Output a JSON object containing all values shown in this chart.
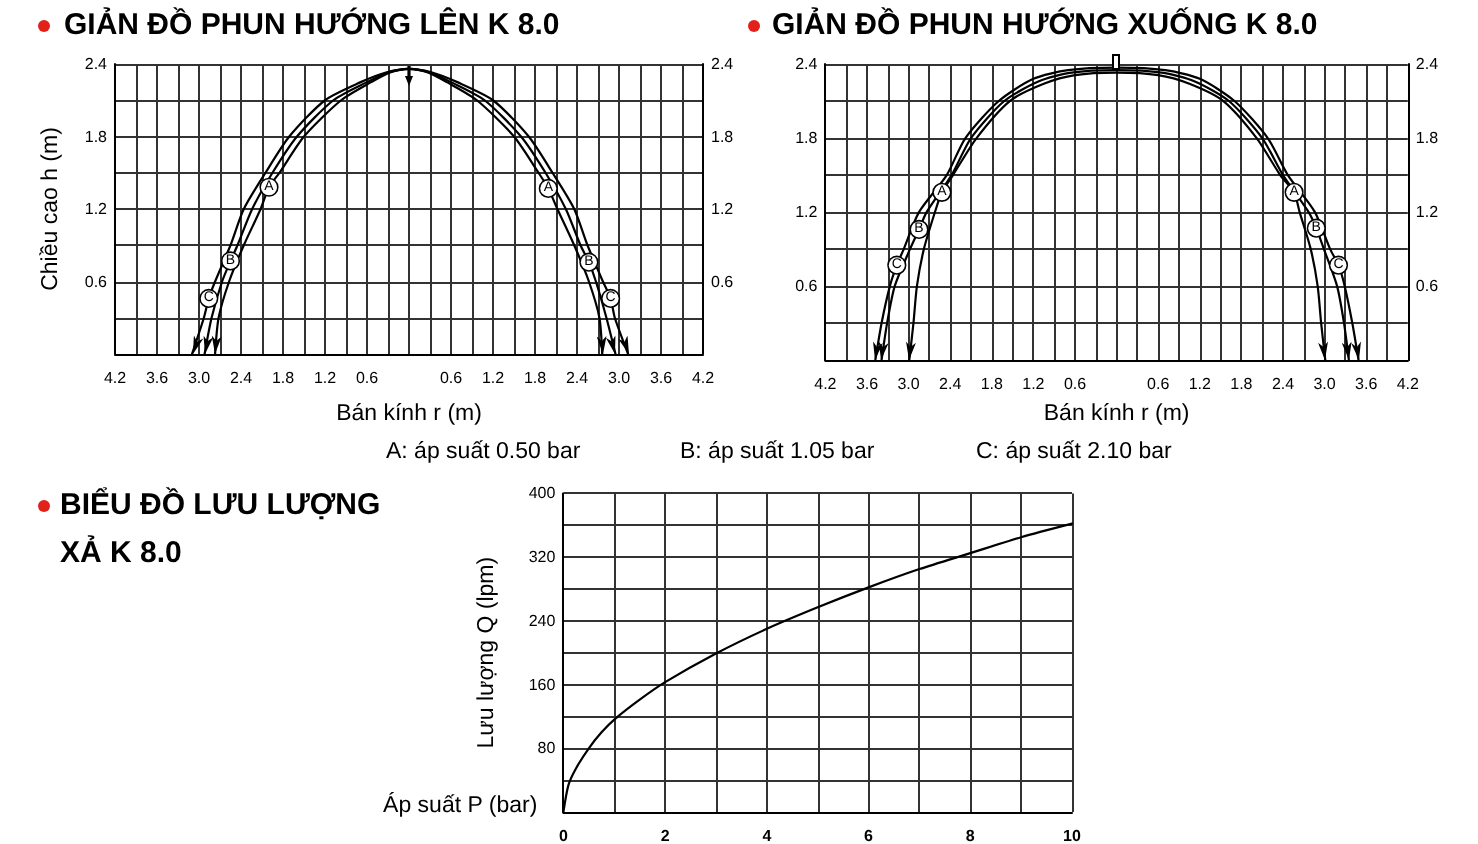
{
  "chart_data": [
    {
      "type": "line",
      "title": "GIẢN ĐỒ PHUN HƯỚNG LÊN K 8.0",
      "xlabel": "Bán kính r (m)",
      "ylabel": "Chiều cao h (m)",
      "series": [
        {
          "name": "A",
          "color": "#000000",
          "x": [
            -2.77,
            -2.72,
            -2.57,
            -2.36,
            -2.12,
            -2,
            -1.85,
            -1.5,
            -0.97,
            -0.54,
            -0.27,
            0,
            0.27,
            0.54,
            0.97,
            1.5,
            1.85,
            1.99,
            2.12,
            2.36,
            2.57,
            2.72,
            2.76
          ],
          "values": [
            0,
            0.3,
            0.6,
            0.9,
            1.2,
            1.38,
            1.5,
            1.8,
            2.1,
            2.25,
            2.33,
            2.36,
            2.33,
            2.25,
            2.1,
            1.8,
            1.5,
            1.37,
            1.2,
            0.9,
            0.6,
            0.3,
            0
          ]
        },
        {
          "name": "B",
          "color": "#000000",
          "x": [
            -2.92,
            -2.82,
            -2.67,
            -2.55,
            -2.45,
            -2.24,
            -1.95,
            -1.6,
            -1.08,
            -0.6,
            -0.3,
            0,
            0.3,
            0.6,
            1.08,
            1.6,
            1.95,
            2.24,
            2.45,
            2.57,
            2.67,
            2.82,
            2.95
          ],
          "values": [
            0,
            0.3,
            0.6,
            0.77,
            0.9,
            1.2,
            1.5,
            1.8,
            2.1,
            2.25,
            2.33,
            2.36,
            2.33,
            2.25,
            2.1,
            1.8,
            1.5,
            1.2,
            0.9,
            0.76,
            0.6,
            0.3,
            0
          ]
        },
        {
          "name": "C",
          "color": "#000000",
          "x": [
            -3.1,
            -2.93,
            -2.86,
            -2.77,
            -2.55,
            -2.36,
            -2.05,
            -1.71,
            -1.2,
            -0.69,
            -0.33,
            0,
            0.33,
            0.69,
            1.2,
            1.71,
            2.05,
            2.36,
            2.55,
            2.77,
            2.88,
            2.94,
            3.13
          ],
          "values": [
            0,
            0.3,
            0.46,
            0.6,
            0.9,
            1.2,
            1.5,
            1.8,
            2.1,
            2.25,
            2.33,
            2.36,
            2.33,
            2.25,
            2.1,
            1.8,
            1.5,
            1.2,
            0.9,
            0.6,
            0.46,
            0.3,
            0
          ]
        }
      ],
      "xlim": [
        -4.2,
        4.2
      ],
      "xticks": [
        {
          "value": -4.2,
          "label": "4.2"
        },
        {
          "value": -3.9,
          "label": null
        },
        {
          "value": -3.6,
          "label": "3.6"
        },
        {
          "value": -3.3,
          "label": null
        },
        {
          "value": -3,
          "label": "3.0"
        },
        {
          "value": -2.7,
          "label": null
        },
        {
          "value": -2.4,
          "label": "2.4"
        },
        {
          "value": -2.1,
          "label": null
        },
        {
          "value": -1.8,
          "label": "1.8"
        },
        {
          "value": -1.5,
          "label": null
        },
        {
          "value": -1.2,
          "label": "1.2"
        },
        {
          "value": -0.9,
          "label": null
        },
        {
          "value": -0.6,
          "label": "0.6"
        },
        {
          "value": -0.3,
          "label": null
        },
        {
          "value": 0,
          "label": null
        },
        {
          "value": 0.3,
          "label": null
        },
        0.6,
        {
          "value": 0.9,
          "label": null
        },
        1.2,
        {
          "value": 1.5,
          "label": null
        },
        1.8,
        {
          "value": 2.1,
          "label": null
        },
        2.4,
        {
          "value": 2.7,
          "label": null
        },
        {
          "value": 3,
          "label": "3.0"
        },
        {
          "value": 3.3,
          "label": null
        },
        3.6,
        {
          "value": 3.9,
          "label": null
        },
        4.2
      ],
      "ylim": [
        0,
        2.4
      ],
      "yticks": [
        {
          "value": 0,
          "label": null
        },
        {
          "value": 0.3,
          "label": null
        },
        0.6,
        {
          "value": 0.9,
          "label": null
        },
        1.2,
        {
          "value": 1.5,
          "label": null
        },
        1.8,
        {
          "value": 2.1,
          "label": null
        },
        2.4
      ],
      "y2lim": [
        0,
        2.4
      ],
      "y2ticks": [
        0.6,
        1.2,
        1.8,
        2.4
      ],
      "grid": true
    },
    {
      "type": "line",
      "title": "GIẢN ĐỒ PHUN HƯỚNG XUỐNG K 8.0",
      "xlabel": "Bán kính r (m)",
      "series": [
        {
          "name": "A",
          "color": "#000000",
          "x": [
            -2.99,
            -2.93,
            -2.88,
            -2.78,
            -2.62,
            -2.52,
            -2.36,
            -2.02,
            -1.54,
            -1.05,
            -0.6,
            0,
            0.6,
            1.05,
            1.54,
            2.02,
            2.36,
            2.56,
            2.64,
            2.8,
            2.9,
            2.95,
            3.01
          ],
          "values": [
            0,
            0.3,
            0.6,
            0.9,
            1.2,
            1.36,
            1.5,
            1.8,
            2.1,
            2.24,
            2.31,
            2.33,
            2.31,
            2.24,
            2.1,
            1.8,
            1.5,
            1.36,
            1.2,
            0.9,
            0.6,
            0.3,
            0
          ]
        },
        {
          "name": "B",
          "color": "#000000",
          "x": [
            -3.39,
            -3.31,
            -3.2,
            -2.98,
            -2.85,
            -2.74,
            -2.38,
            -2.1,
            -1.62,
            -1.12,
            -0.65,
            0,
            0.65,
            1.12,
            1.62,
            2.1,
            2.4,
            2.77,
            2.88,
            2.99,
            3.18,
            3.28,
            3.35
          ],
          "values": [
            0,
            0.3,
            0.6,
            0.9,
            1.06,
            1.2,
            1.5,
            1.8,
            2.1,
            2.26,
            2.33,
            2.35,
            2.33,
            2.26,
            2.1,
            1.8,
            1.5,
            1.2,
            1.07,
            0.9,
            0.6,
            0.3,
            0
          ]
        },
        {
          "name": "C",
          "color": "#000000",
          "x": [
            -3.48,
            -3.39,
            -3.27,
            -3.17,
            -3.07,
            -2.85,
            -2.45,
            -2.18,
            -1.7,
            -1.2,
            -0.7,
            0,
            0.7,
            1.2,
            1.7,
            2.18,
            2.47,
            2.86,
            3.08,
            3.2,
            3.29,
            3.4,
            3.49
          ],
          "values": [
            0,
            0.3,
            0.6,
            0.77,
            0.9,
            1.2,
            1.5,
            1.8,
            2.1,
            2.28,
            2.35,
            2.37,
            2.35,
            2.28,
            2.1,
            1.8,
            1.5,
            1.2,
            0.9,
            0.77,
            0.6,
            0.3,
            0
          ]
        }
      ],
      "xlim": [
        -4.2,
        4.2
      ],
      "xticks": [
        {
          "value": -4.2,
          "label": "4.2"
        },
        {
          "value": -3.9,
          "label": null
        },
        {
          "value": -3.6,
          "label": "3.6"
        },
        {
          "value": -3.3,
          "label": null
        },
        {
          "value": -3,
          "label": "3.0"
        },
        {
          "value": -2.7,
          "label": null
        },
        {
          "value": -2.4,
          "label": "2.4"
        },
        {
          "value": -2.1,
          "label": null
        },
        {
          "value": -1.8,
          "label": "1.8"
        },
        {
          "value": -1.5,
          "label": null
        },
        {
          "value": -1.2,
          "label": "1.2"
        },
        {
          "value": -0.9,
          "label": null
        },
        {
          "value": -0.6,
          "label": "0.6"
        },
        {
          "value": -0.3,
          "label": null
        },
        {
          "value": 0,
          "label": null
        },
        {
          "value": 0.3,
          "label": null
        },
        0.6,
        {
          "value": 0.9,
          "label": null
        },
        1.2,
        {
          "value": 1.5,
          "label": null
        },
        1.8,
        {
          "value": 2.1,
          "label": null
        },
        2.4,
        {
          "value": 2.7,
          "label": null
        },
        {
          "value": 3,
          "label": "3.0"
        },
        {
          "value": 3.3,
          "label": null
        },
        3.6,
        {
          "value": 3.9,
          "label": null
        },
        4.2
      ],
      "ylim": [
        0,
        2.4
      ],
      "yticks": [
        {
          "value": 0,
          "label": null
        },
        {
          "value": 0.3,
          "label": null
        },
        0.6,
        {
          "value": 0.9,
          "label": null
        },
        1.2,
        {
          "value": 1.5,
          "label": null
        },
        1.8,
        {
          "value": 2.1,
          "label": null
        },
        2.4
      ],
      "y2lim": [
        0,
        2.4
      ],
      "y2ticks": [
        0.6,
        1.2,
        1.8,
        2.4
      ],
      "grid": true
    },
    {
      "type": "other",
      "annotations": [
        "A: áp suất 0.50 bar",
        "B: áp suất 1.05 bar",
        "C: áp suất 2.10 bar"
      ]
    },
    {
      "type": "line",
      "title": "BIỂU ĐỒ LƯU LƯỢNG XẢ K 8.0",
      "xlabel": "Áp suất P (bar)",
      "ylabel": "Lưu lượng Q (lpm)",
      "x": [
        0,
        0.1,
        0.25,
        0.5,
        0.75,
        1,
        1.5,
        2,
        3,
        4,
        5,
        6,
        7,
        8,
        9,
        10
      ],
      "values": [
        0,
        34,
        55,
        80,
        100,
        116,
        141,
        163,
        199,
        230,
        257,
        282,
        305,
        325,
        345,
        362
      ],
      "color": "#000000",
      "xlim": [
        0,
        10
      ],
      "xticks": [
        0,
        {
          "value": 1,
          "label": null
        },
        2,
        {
          "value": 3,
          "label": null
        },
        4,
        {
          "value": 5,
          "label": null
        },
        6,
        {
          "value": 7,
          "label": null
        },
        8,
        {
          "value": 9,
          "label": null
        },
        10
      ],
      "ylim": [
        0,
        400
      ],
      "yticks": [
        {
          "value": 0,
          "label": null
        },
        {
          "value": 40,
          "label": null
        },
        80,
        {
          "value": 120,
          "label": null
        },
        160,
        {
          "value": 200,
          "label": null
        },
        240,
        {
          "value": 280,
          "label": null
        },
        320,
        {
          "value": 360,
          "label": null
        },
        400
      ],
      "grid": true
    }
  ]
}
